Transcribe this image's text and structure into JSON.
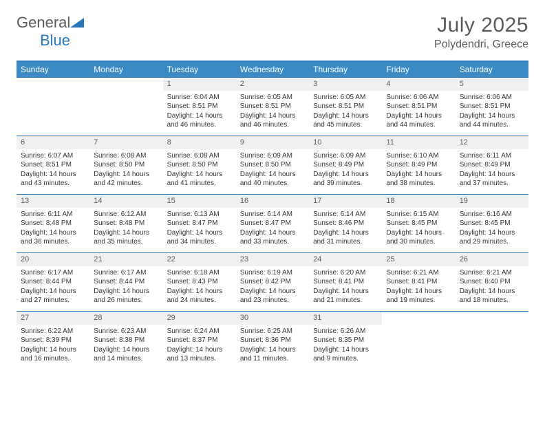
{
  "logo": {
    "text1": "General",
    "text2": "Blue"
  },
  "title": "July 2025",
  "location": "Polydendri, Greece",
  "colors": {
    "header_bg": "#3b8ac4",
    "border": "#2a77bb",
    "daynum_bg": "#eef0f2",
    "text": "#333333",
    "muted": "#5a5a5a"
  },
  "day_names": [
    "Sunday",
    "Monday",
    "Tuesday",
    "Wednesday",
    "Thursday",
    "Friday",
    "Saturday"
  ],
  "weeks": [
    [
      {
        "n": "",
        "sr": "",
        "ss": "",
        "dl": ""
      },
      {
        "n": "",
        "sr": "",
        "ss": "",
        "dl": ""
      },
      {
        "n": "1",
        "sr": "Sunrise: 6:04 AM",
        "ss": "Sunset: 8:51 PM",
        "dl": "Daylight: 14 hours and 46 minutes."
      },
      {
        "n": "2",
        "sr": "Sunrise: 6:05 AM",
        "ss": "Sunset: 8:51 PM",
        "dl": "Daylight: 14 hours and 46 minutes."
      },
      {
        "n": "3",
        "sr": "Sunrise: 6:05 AM",
        "ss": "Sunset: 8:51 PM",
        "dl": "Daylight: 14 hours and 45 minutes."
      },
      {
        "n": "4",
        "sr": "Sunrise: 6:06 AM",
        "ss": "Sunset: 8:51 PM",
        "dl": "Daylight: 14 hours and 44 minutes."
      },
      {
        "n": "5",
        "sr": "Sunrise: 6:06 AM",
        "ss": "Sunset: 8:51 PM",
        "dl": "Daylight: 14 hours and 44 minutes."
      }
    ],
    [
      {
        "n": "6",
        "sr": "Sunrise: 6:07 AM",
        "ss": "Sunset: 8:51 PM",
        "dl": "Daylight: 14 hours and 43 minutes."
      },
      {
        "n": "7",
        "sr": "Sunrise: 6:08 AM",
        "ss": "Sunset: 8:50 PM",
        "dl": "Daylight: 14 hours and 42 minutes."
      },
      {
        "n": "8",
        "sr": "Sunrise: 6:08 AM",
        "ss": "Sunset: 8:50 PM",
        "dl": "Daylight: 14 hours and 41 minutes."
      },
      {
        "n": "9",
        "sr": "Sunrise: 6:09 AM",
        "ss": "Sunset: 8:50 PM",
        "dl": "Daylight: 14 hours and 40 minutes."
      },
      {
        "n": "10",
        "sr": "Sunrise: 6:09 AM",
        "ss": "Sunset: 8:49 PM",
        "dl": "Daylight: 14 hours and 39 minutes."
      },
      {
        "n": "11",
        "sr": "Sunrise: 6:10 AM",
        "ss": "Sunset: 8:49 PM",
        "dl": "Daylight: 14 hours and 38 minutes."
      },
      {
        "n": "12",
        "sr": "Sunrise: 6:11 AM",
        "ss": "Sunset: 8:49 PM",
        "dl": "Daylight: 14 hours and 37 minutes."
      }
    ],
    [
      {
        "n": "13",
        "sr": "Sunrise: 6:11 AM",
        "ss": "Sunset: 8:48 PM",
        "dl": "Daylight: 14 hours and 36 minutes."
      },
      {
        "n": "14",
        "sr": "Sunrise: 6:12 AM",
        "ss": "Sunset: 8:48 PM",
        "dl": "Daylight: 14 hours and 35 minutes."
      },
      {
        "n": "15",
        "sr": "Sunrise: 6:13 AM",
        "ss": "Sunset: 8:47 PM",
        "dl": "Daylight: 14 hours and 34 minutes."
      },
      {
        "n": "16",
        "sr": "Sunrise: 6:14 AM",
        "ss": "Sunset: 8:47 PM",
        "dl": "Daylight: 14 hours and 33 minutes."
      },
      {
        "n": "17",
        "sr": "Sunrise: 6:14 AM",
        "ss": "Sunset: 8:46 PM",
        "dl": "Daylight: 14 hours and 31 minutes."
      },
      {
        "n": "18",
        "sr": "Sunrise: 6:15 AM",
        "ss": "Sunset: 8:45 PM",
        "dl": "Daylight: 14 hours and 30 minutes."
      },
      {
        "n": "19",
        "sr": "Sunrise: 6:16 AM",
        "ss": "Sunset: 8:45 PM",
        "dl": "Daylight: 14 hours and 29 minutes."
      }
    ],
    [
      {
        "n": "20",
        "sr": "Sunrise: 6:17 AM",
        "ss": "Sunset: 8:44 PM",
        "dl": "Daylight: 14 hours and 27 minutes."
      },
      {
        "n": "21",
        "sr": "Sunrise: 6:17 AM",
        "ss": "Sunset: 8:44 PM",
        "dl": "Daylight: 14 hours and 26 minutes."
      },
      {
        "n": "22",
        "sr": "Sunrise: 6:18 AM",
        "ss": "Sunset: 8:43 PM",
        "dl": "Daylight: 14 hours and 24 minutes."
      },
      {
        "n": "23",
        "sr": "Sunrise: 6:19 AM",
        "ss": "Sunset: 8:42 PM",
        "dl": "Daylight: 14 hours and 23 minutes."
      },
      {
        "n": "24",
        "sr": "Sunrise: 6:20 AM",
        "ss": "Sunset: 8:41 PM",
        "dl": "Daylight: 14 hours and 21 minutes."
      },
      {
        "n": "25",
        "sr": "Sunrise: 6:21 AM",
        "ss": "Sunset: 8:41 PM",
        "dl": "Daylight: 14 hours and 19 minutes."
      },
      {
        "n": "26",
        "sr": "Sunrise: 6:21 AM",
        "ss": "Sunset: 8:40 PM",
        "dl": "Daylight: 14 hours and 18 minutes."
      }
    ],
    [
      {
        "n": "27",
        "sr": "Sunrise: 6:22 AM",
        "ss": "Sunset: 8:39 PM",
        "dl": "Daylight: 14 hours and 16 minutes."
      },
      {
        "n": "28",
        "sr": "Sunrise: 6:23 AM",
        "ss": "Sunset: 8:38 PM",
        "dl": "Daylight: 14 hours and 14 minutes."
      },
      {
        "n": "29",
        "sr": "Sunrise: 6:24 AM",
        "ss": "Sunset: 8:37 PM",
        "dl": "Daylight: 14 hours and 13 minutes."
      },
      {
        "n": "30",
        "sr": "Sunrise: 6:25 AM",
        "ss": "Sunset: 8:36 PM",
        "dl": "Daylight: 14 hours and 11 minutes."
      },
      {
        "n": "31",
        "sr": "Sunrise: 6:26 AM",
        "ss": "Sunset: 8:35 PM",
        "dl": "Daylight: 14 hours and 9 minutes."
      },
      {
        "n": "",
        "sr": "",
        "ss": "",
        "dl": ""
      },
      {
        "n": "",
        "sr": "",
        "ss": "",
        "dl": ""
      }
    ]
  ]
}
